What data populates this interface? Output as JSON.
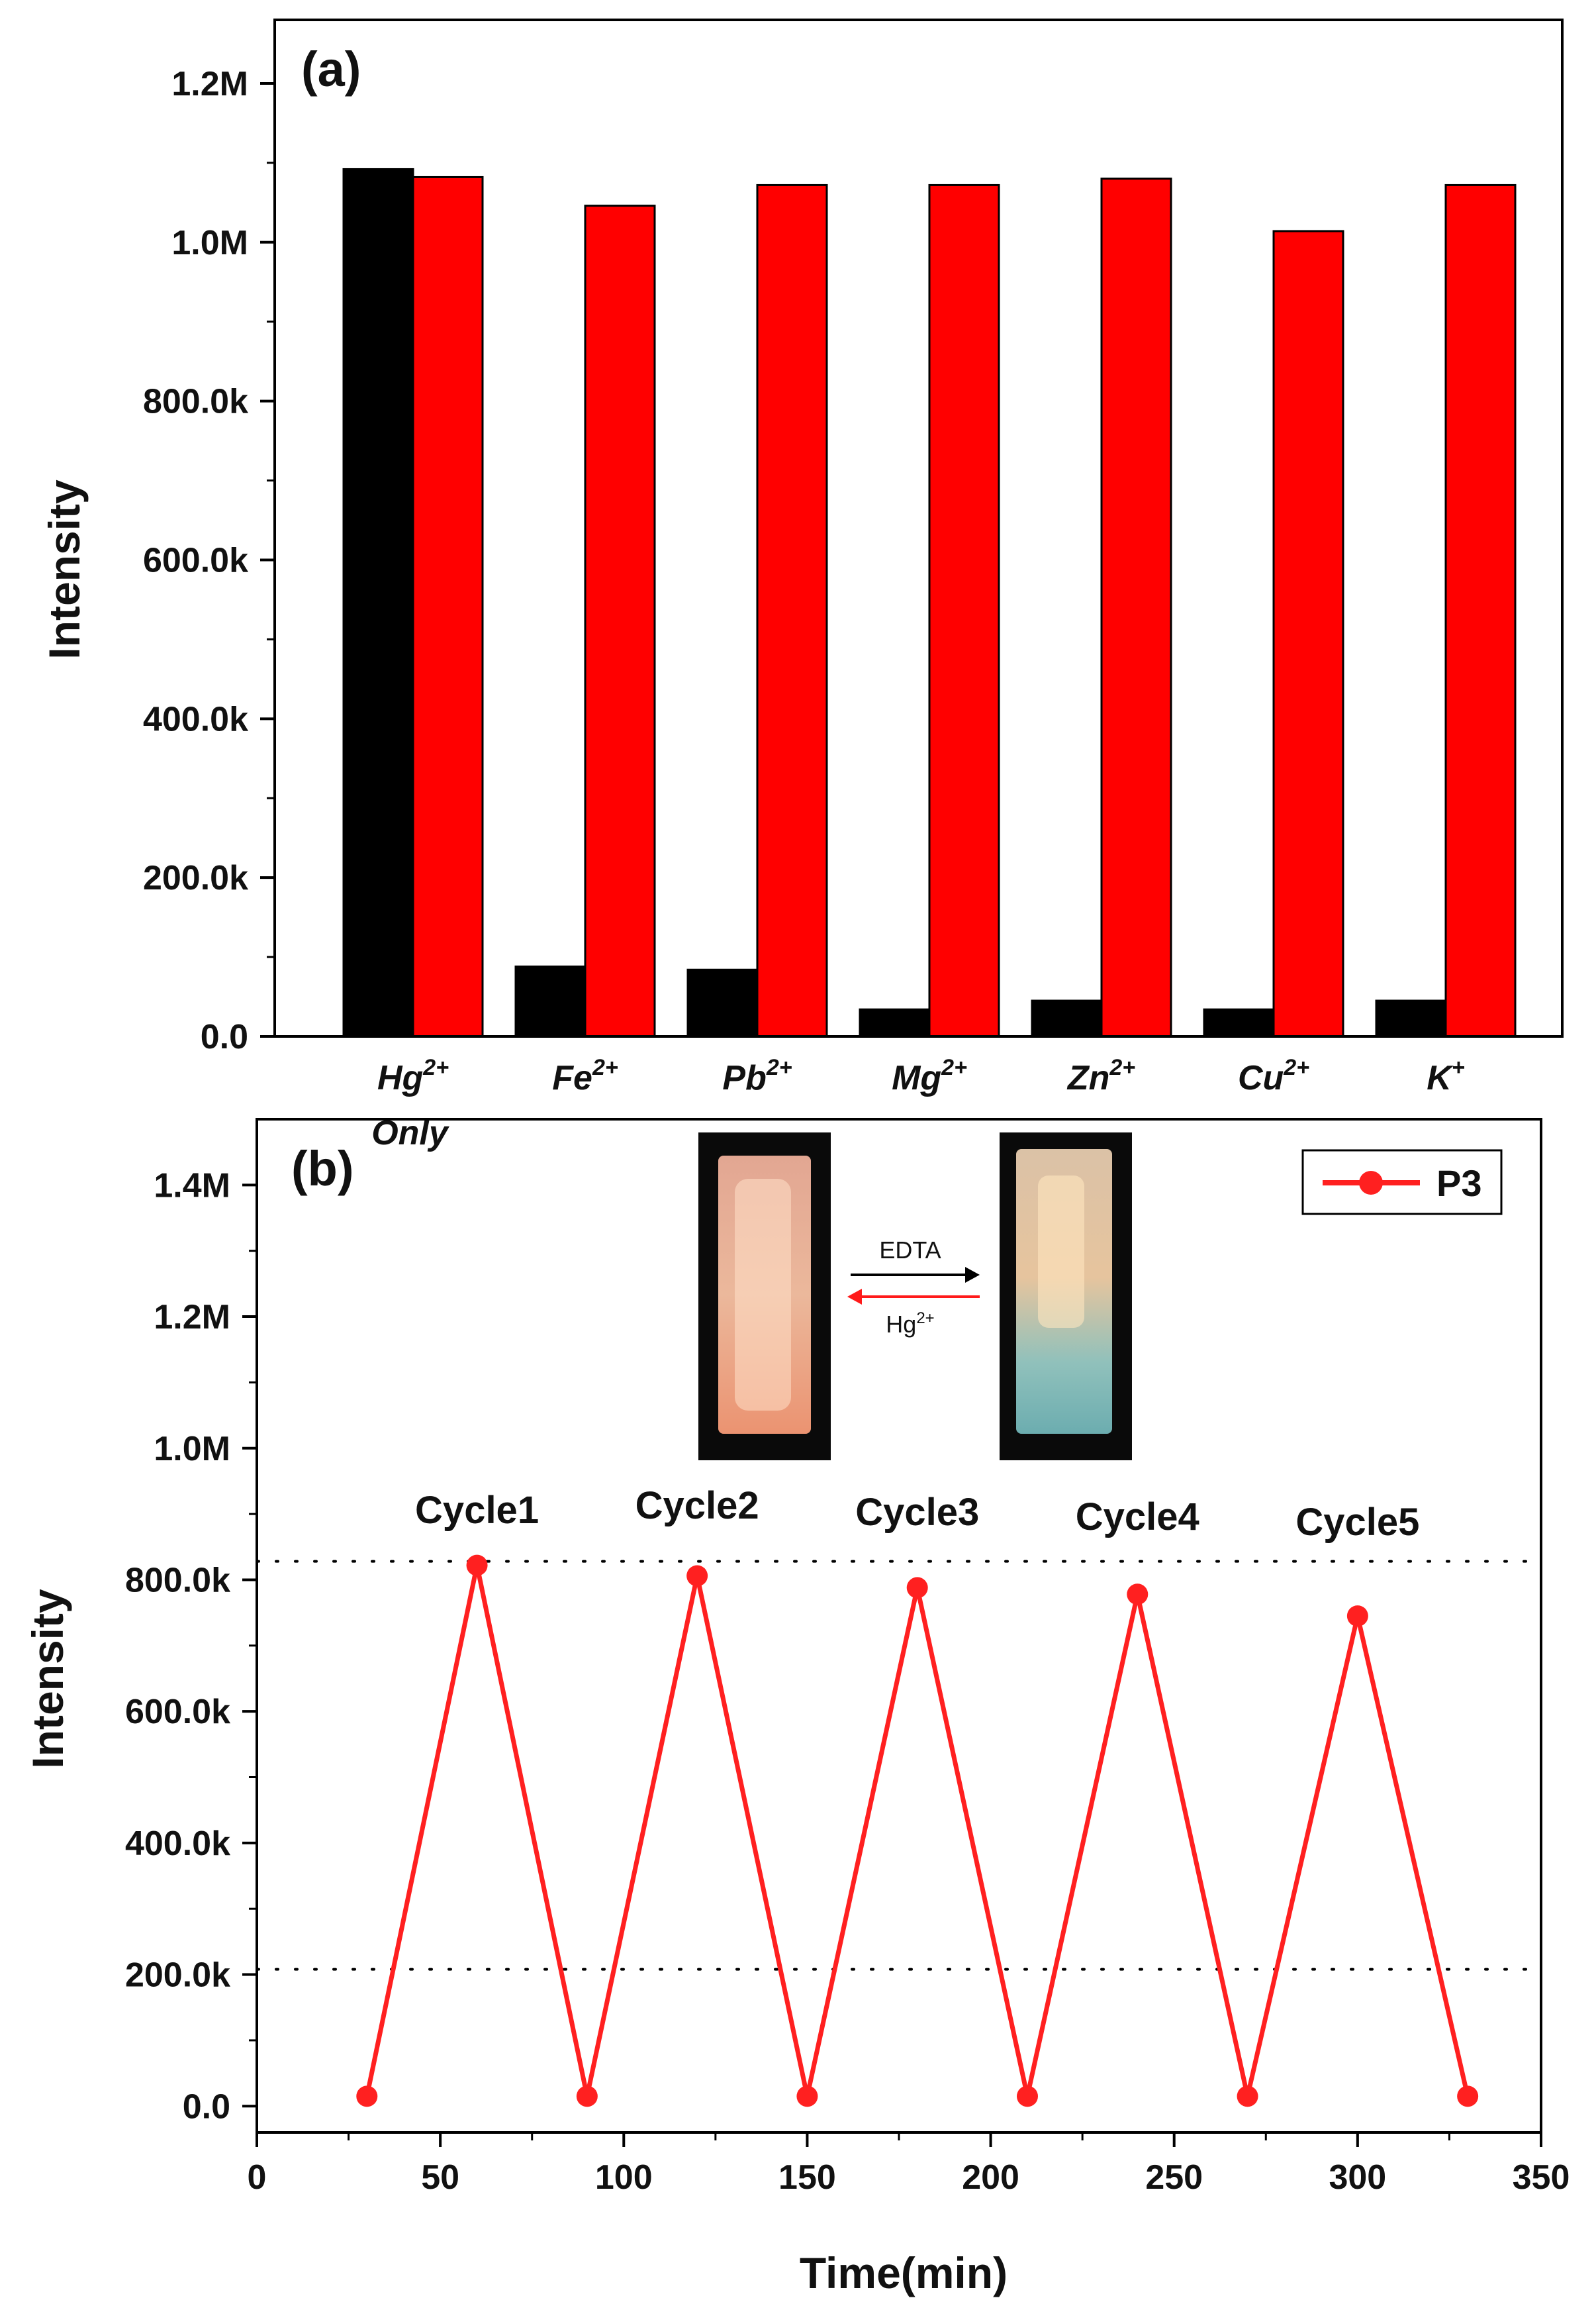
{
  "chart_data": [
    {
      "panel": "a",
      "type": "bar",
      "panel_label": "(a)",
      "ylabel": "Intensity",
      "xlabel": "",
      "ylim": [
        0,
        1280000
      ],
      "yticks": [
        0,
        200000,
        400000,
        600000,
        800000,
        1000000,
        1200000
      ],
      "ytick_labels": [
        "0.0",
        "200.0k",
        "400.0k",
        "600.0k",
        "800.0k",
        "1.0M",
        "1.2M"
      ],
      "categories": [
        {
          "base": "Hg",
          "sup": "2+",
          "note": "Only",
          "color": "#1a7fc8"
        },
        {
          "base": "Fe",
          "sup": "2+",
          "note": "",
          "color": "#111111"
        },
        {
          "base": "Pb",
          "sup": "2+",
          "note": "",
          "color": "#111111"
        },
        {
          "base": "Mg",
          "sup": "2+",
          "note": "",
          "color": "#111111"
        },
        {
          "base": "Zn",
          "sup": "2+",
          "note": "",
          "color": "#111111"
        },
        {
          "base": "Cu",
          "sup": "2+",
          "note": "",
          "color": "#111111"
        },
        {
          "base": "K",
          "sup": "+",
          "note": "",
          "color": "#111111"
        }
      ],
      "series": [
        {
          "name": "black",
          "color": "#000000",
          "values": [
            1092000,
            88000,
            84000,
            34000,
            45000,
            34000,
            45000
          ]
        },
        {
          "name": "red",
          "color": "#ff0000",
          "values": [
            1082000,
            1046000,
            1072000,
            1072000,
            1080000,
            1014000,
            1072000
          ]
        }
      ]
    },
    {
      "panel": "b",
      "type": "line",
      "panel_label": "(b)",
      "ylabel": "Intensity",
      "xlabel": "Time(min)",
      "xlim": [
        0,
        350
      ],
      "ylim": [
        -40000,
        1500000
      ],
      "xticks": [
        0,
        50,
        100,
        150,
        200,
        250,
        300,
        350
      ],
      "yticks": [
        0,
        200000,
        400000,
        600000,
        800000,
        1000000,
        1200000,
        1400000
      ],
      "ytick_labels": [
        "0.0",
        "200.0k",
        "400.0k",
        "600.0k",
        "800.0k",
        "1.0M",
        "1.2M",
        "1.4M"
      ],
      "series": [
        {
          "name": "P3",
          "color": "#ff2020",
          "x": [
            30,
            60,
            90,
            120,
            150,
            180,
            210,
            240,
            270,
            300,
            330
          ],
          "y": [
            15000,
            822000,
            15000,
            806000,
            15000,
            788000,
            15000,
            778000,
            15000,
            745000,
            15000
          ]
        }
      ],
      "reference_lines": [
        828000,
        208000
      ],
      "cycle_labels": [
        {
          "text": "Cycle1",
          "x": 60
        },
        {
          "text": "Cycle2",
          "x": 120
        },
        {
          "text": "Cycle3",
          "x": 180
        },
        {
          "text": "Cycle4",
          "x": 240
        },
        {
          "text": "Cycle5",
          "x": 300
        }
      ],
      "legend": {
        "label": "P3",
        "position": "top-right"
      },
      "inset": {
        "forward_label": "EDTA",
        "forward_color": "#000000",
        "reverse_label_base": "Hg",
        "reverse_label_sup": "2+",
        "reverse_color": "#ff1a1a"
      }
    }
  ]
}
